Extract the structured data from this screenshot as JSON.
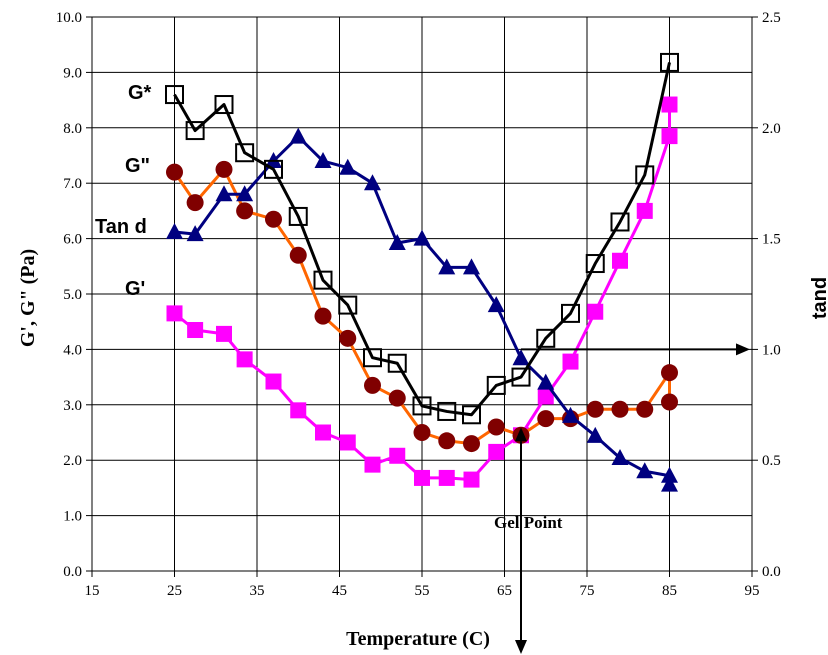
{
  "chart_data": {
    "type": "line",
    "x_axis": {
      "label": "Temperature (C)",
      "min": 15,
      "max": 95,
      "ticks": [
        "15",
        "25",
        "35",
        "45",
        "55",
        "65",
        "75",
        "85",
        "95"
      ]
    },
    "y_axis_left": {
      "label": "G', G\" (Pa)",
      "min": 0,
      "max": 10,
      "ticks": [
        "0.0",
        "1.0",
        "2.0",
        "3.0",
        "4.0",
        "5.0",
        "6.0",
        "7.0",
        "8.0",
        "9.0",
        "10.0"
      ]
    },
    "y_axis_right": {
      "label": "tand",
      "min": 0,
      "max": 2.5,
      "ticks": [
        "0.0",
        "0.5",
        "1.0",
        "1.5",
        "2.0",
        "2.5"
      ]
    },
    "grid": true,
    "series": [
      {
        "name": "G*",
        "axis": "left",
        "color": "#000000",
        "marker": "open-square",
        "x": [
          25,
          27.5,
          31,
          33.5,
          37,
          40,
          43,
          46,
          49,
          52,
          55,
          58,
          61,
          64,
          67,
          70,
          73,
          76,
          79,
          82,
          85
        ],
        "y": [
          8.6,
          7.95,
          8.42,
          7.55,
          7.25,
          6.4,
          5.25,
          4.8,
          3.85,
          3.75,
          2.98,
          2.88,
          2.82,
          3.35,
          3.5,
          4.2,
          4.65,
          5.55,
          6.3,
          7.15,
          9.18
        ]
      },
      {
        "name": "G\"",
        "axis": "left",
        "color": "#ff6600",
        "marker": "circle",
        "marker_color": "#800000",
        "x": [
          25,
          27.5,
          31,
          33.5,
          37,
          40,
          43,
          46,
          49,
          52,
          55,
          58,
          61,
          64,
          67,
          70,
          73,
          76,
          79,
          82,
          85,
          85
        ],
        "y": [
          7.2,
          6.65,
          7.25,
          6.5,
          6.35,
          5.7,
          4.6,
          4.2,
          3.35,
          3.12,
          2.5,
          2.35,
          2.3,
          2.6,
          2.45,
          2.75,
          2.75,
          2.92,
          2.92,
          2.92,
          3.58,
          3.05
        ]
      },
      {
        "name": "G'",
        "axis": "left",
        "color": "#ff00ff",
        "marker": "filled-square",
        "marker_color": "#ff00ff",
        "x": [
          25,
          27.5,
          31,
          33.5,
          37,
          40,
          43,
          46,
          49,
          52,
          55,
          58,
          61,
          64,
          67,
          70,
          73,
          76,
          79,
          82,
          85,
          85
        ],
        "y": [
          4.65,
          4.35,
          4.28,
          3.82,
          3.42,
          2.9,
          2.5,
          2.32,
          1.92,
          2.08,
          1.68,
          1.68,
          1.65,
          2.15,
          2.45,
          3.15,
          3.78,
          4.68,
          5.6,
          6.5,
          7.85,
          8.42
        ]
      },
      {
        "name": "Tan d",
        "axis": "right",
        "color": "#000080",
        "marker": "triangle",
        "x": [
          25,
          27.5,
          31,
          33.5,
          37,
          40,
          43,
          46,
          49,
          52,
          55,
          58,
          61,
          64,
          67,
          70,
          73,
          76,
          79,
          82,
          85,
          85
        ],
        "y": [
          1.53,
          1.52,
          1.7,
          1.7,
          1.85,
          1.96,
          1.85,
          1.82,
          1.75,
          1.48,
          1.5,
          1.37,
          1.37,
          1.2,
          0.96,
          0.85,
          0.7,
          0.61,
          0.51,
          0.45,
          0.43,
          0.39
        ]
      }
    ],
    "annotations": {
      "gel_point": {
        "text": "Gel Point",
        "x": 67
      },
      "tand_arrow_y": 1.0
    }
  }
}
